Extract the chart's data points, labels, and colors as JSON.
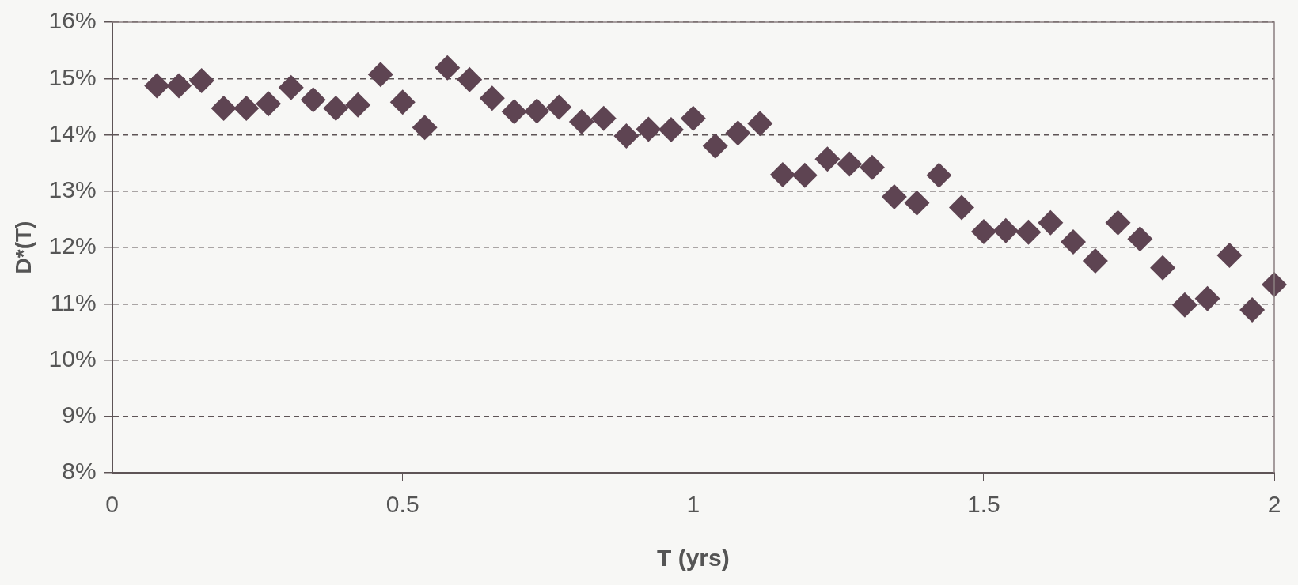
{
  "chart_data": {
    "type": "scatter",
    "xlabel": "T (yrs)",
    "ylabel": "D*(T)",
    "x": [
      0.077,
      0.115,
      0.154,
      0.192,
      0.231,
      0.269,
      0.308,
      0.346,
      0.385,
      0.423,
      0.462,
      0.5,
      0.538,
      0.577,
      0.615,
      0.654,
      0.692,
      0.731,
      0.769,
      0.808,
      0.846,
      0.885,
      0.923,
      0.962,
      1.0,
      1.038,
      1.077,
      1.115,
      1.154,
      1.192,
      1.231,
      1.269,
      1.308,
      1.346,
      1.385,
      1.423,
      1.462,
      1.5,
      1.538,
      1.577,
      1.615,
      1.654,
      1.692,
      1.731,
      1.769,
      1.808,
      1.846,
      1.885,
      1.923,
      1.962,
      2.0
    ],
    "series": [
      {
        "color": "#5e4452",
        "values": [
          14.87,
          14.87,
          14.96,
          14.47,
          14.47,
          14.55,
          14.84,
          14.62,
          14.47,
          14.53,
          15.07,
          14.58,
          14.13,
          15.19,
          14.98,
          14.65,
          14.41,
          14.42,
          14.49,
          14.23,
          14.29,
          13.98,
          14.1,
          14.09,
          14.29,
          13.8,
          14.03,
          14.2,
          13.29,
          13.28,
          13.57,
          13.48,
          13.42,
          12.9,
          12.79,
          13.28,
          12.71,
          12.28,
          12.3,
          12.27,
          12.44,
          12.1,
          11.76,
          12.44,
          12.15,
          11.64,
          10.98,
          11.09,
          11.86,
          10.89,
          11.34
        ]
      }
    ],
    "xlim": [
      0,
      2
    ],
    "xticks": [
      0,
      0.5,
      1,
      1.5,
      2
    ],
    "ylim": [
      8,
      16
    ],
    "yticks": [
      {
        "value": 8,
        "label": "8%"
      },
      {
        "value": 9,
        "label": "9%"
      },
      {
        "value": 10,
        "label": "10%"
      },
      {
        "value": 11,
        "label": "11%"
      },
      {
        "value": 12,
        "label": "12%"
      },
      {
        "value": 13,
        "label": "13%"
      },
      {
        "value": 14,
        "label": "14%"
      },
      {
        "value": 15,
        "label": "15%"
      },
      {
        "value": 16,
        "label": "16%"
      }
    ],
    "grid": "y",
    "legend": false,
    "marker": "diamond"
  }
}
